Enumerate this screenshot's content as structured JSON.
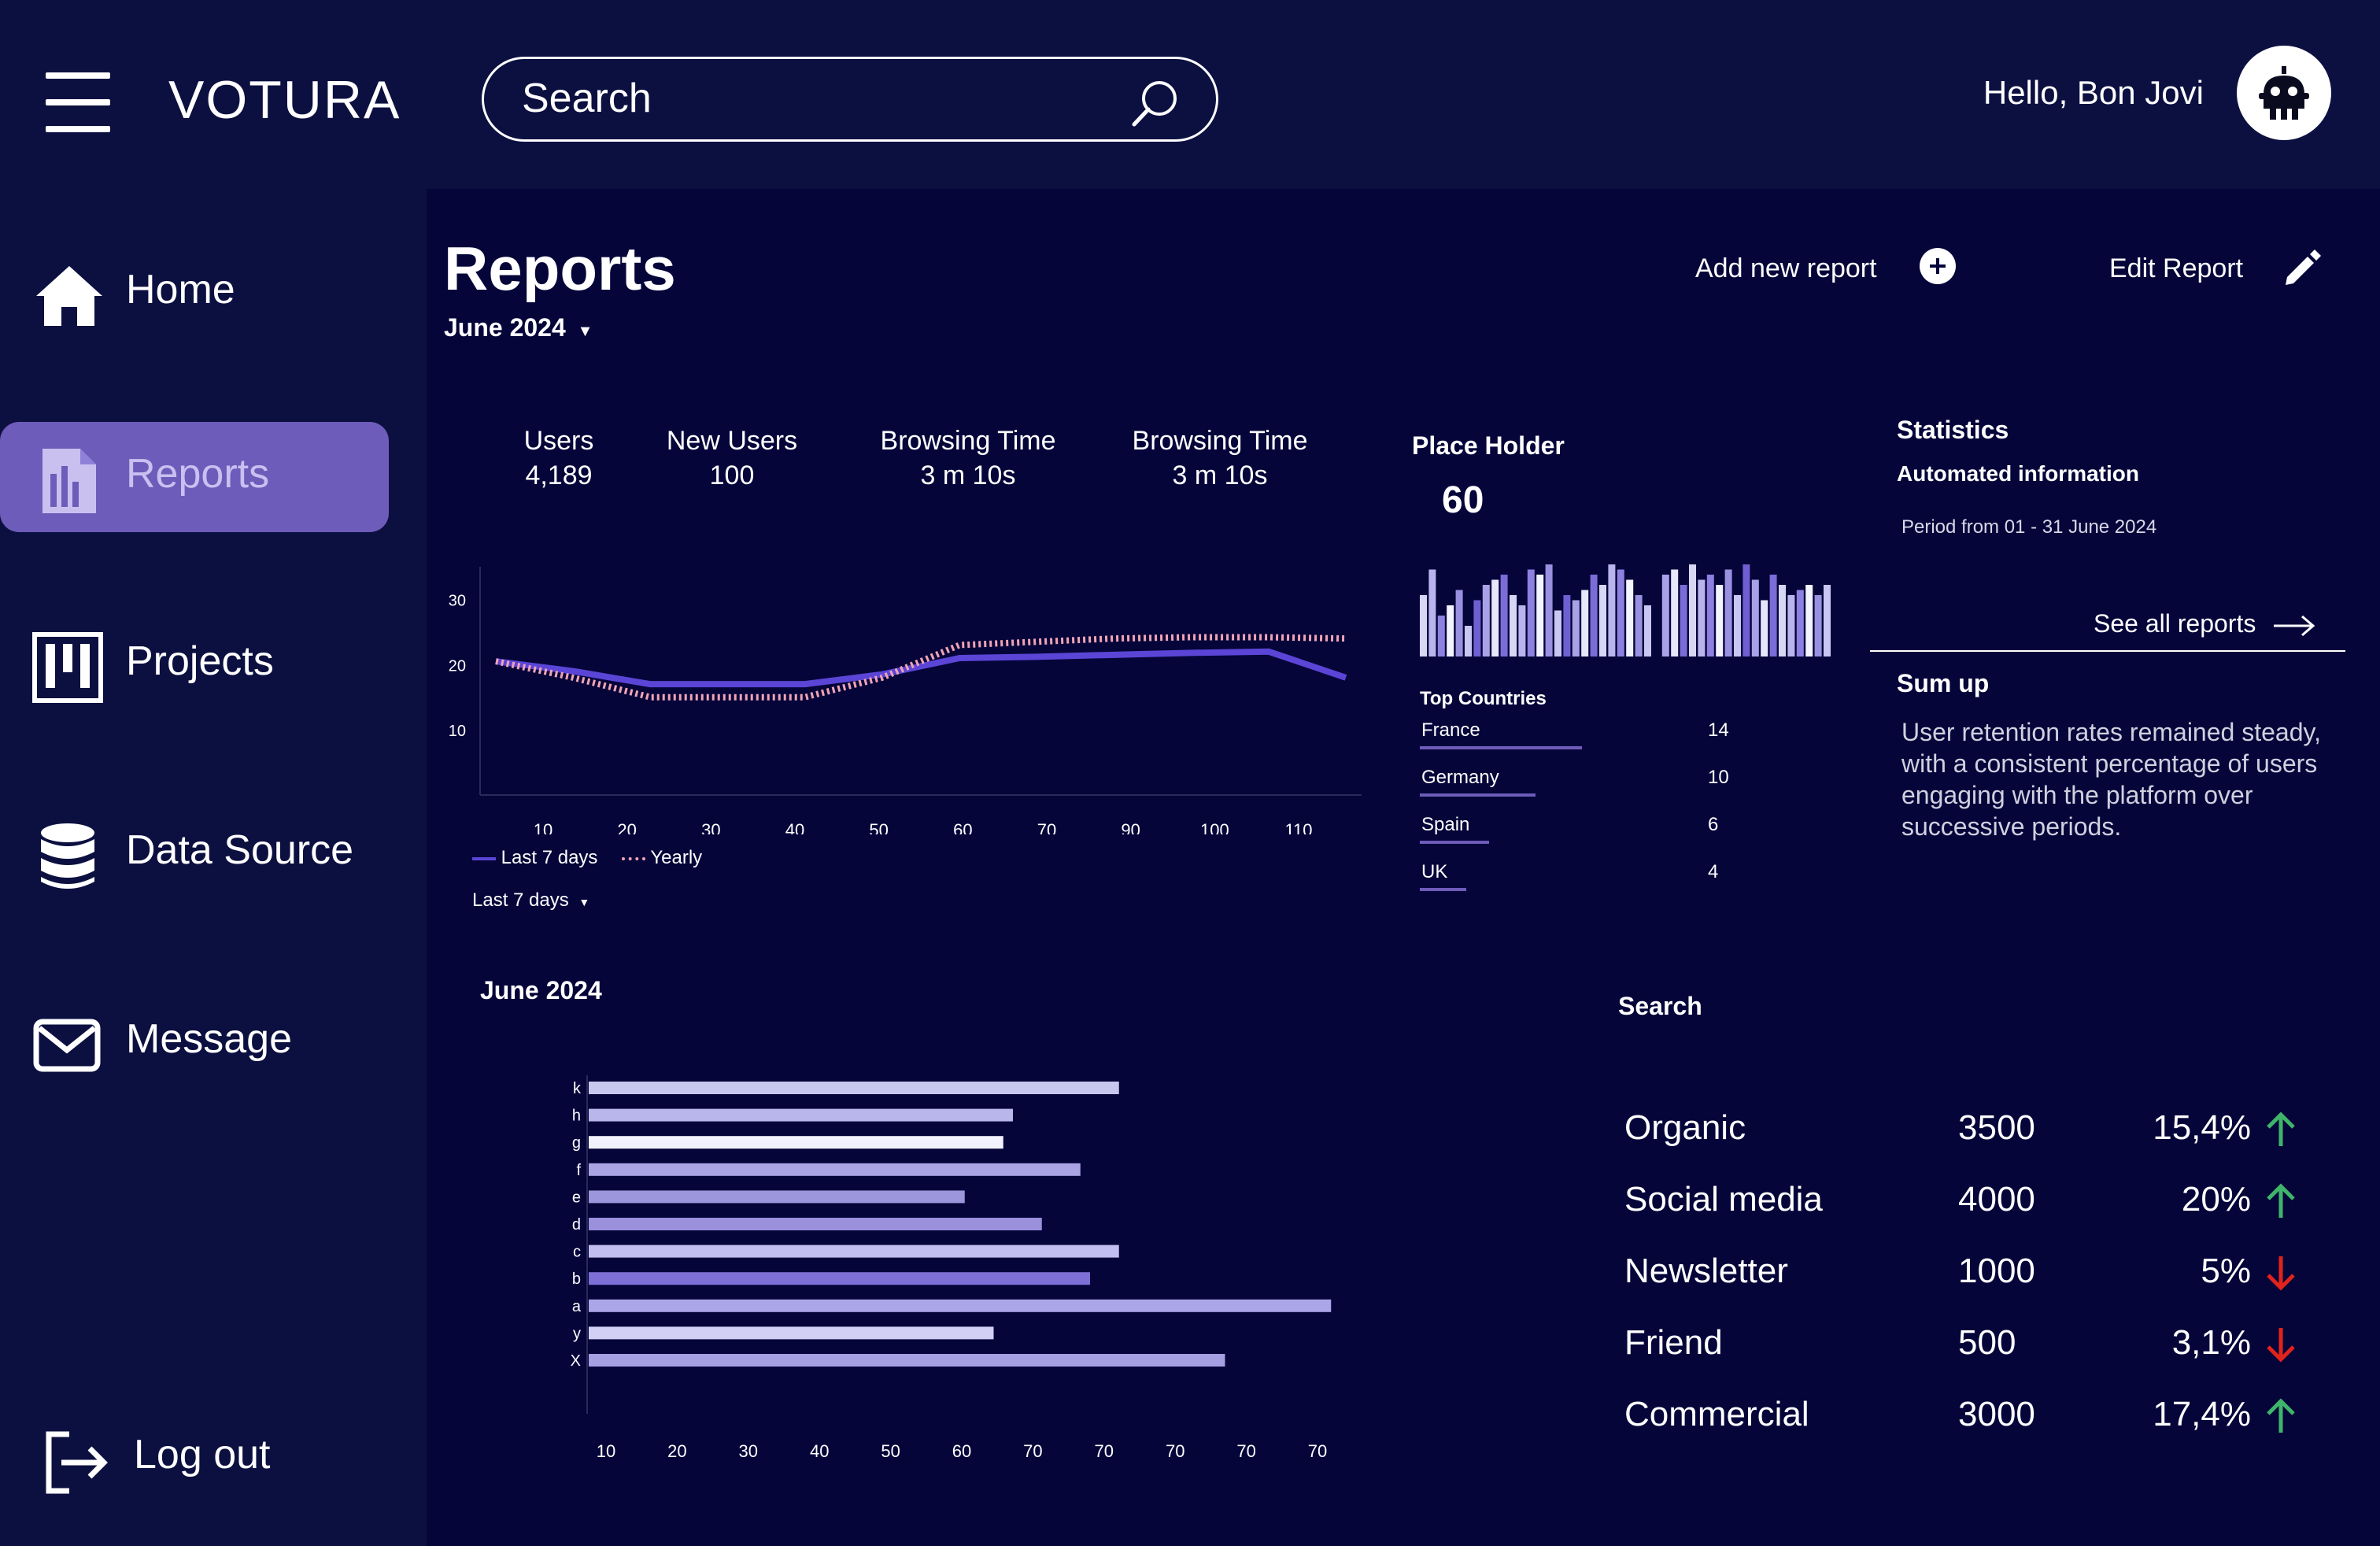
{
  "app": {
    "brand": "VOTURA",
    "greeting": "Hello, Bon Jovi"
  },
  "search": {
    "placeholder": "Search"
  },
  "sidebar": {
    "items": [
      {
        "label": "Home",
        "icon": "home-icon"
      },
      {
        "label": "Reports",
        "icon": "reports-icon",
        "active": true
      },
      {
        "label": "Projects",
        "icon": "projects-icon"
      },
      {
        "label": "Data Source",
        "icon": "database-icon"
      },
      {
        "label": "Message",
        "icon": "mail-icon"
      }
    ],
    "logout": "Log out"
  },
  "page": {
    "title": "Reports",
    "period": "June 2024",
    "add_report": "Add new report",
    "edit_report": "Edit Report"
  },
  "kpis": [
    {
      "label": "Users",
      "value": "4,189"
    },
    {
      "label": "New Users",
      "value": "100"
    },
    {
      "label": "Browsing Time",
      "value": "3 m 10s"
    },
    {
      "label": "Browsing Time",
      "value": "3 m 10s"
    }
  ],
  "chart_data": [
    {
      "type": "line",
      "x_ticks": [
        "10",
        "20",
        "30",
        "40",
        "50",
        "60",
        "70",
        "90",
        "100",
        "110"
      ],
      "y_ticks": [
        "10",
        "20",
        "30"
      ],
      "ylim": [
        0,
        35
      ],
      "series": [
        {
          "name": "Last 7 days",
          "color": "#5b45d6",
          "style": "solid",
          "values": [
            20.5,
            19,
            17,
            17,
            17,
            18.5,
            21,
            21.2,
            21.5,
            21.8,
            22,
            18
          ]
        },
        {
          "name": "Yearly",
          "color": "#f0a4b4",
          "style": "dotted",
          "values": [
            20.5,
            18,
            15,
            15,
            15,
            18,
            23,
            23.5,
            24,
            24.2,
            24.2,
            24
          ]
        }
      ],
      "legend_position": "bottom-left",
      "range_selector": "Last 7 days"
    },
    {
      "type": "bar",
      "orientation": "horizontal",
      "title": "June 2024",
      "categories": [
        "k",
        "h",
        "g",
        "f",
        "e",
        "d",
        "c",
        "b",
        "a",
        "y",
        "X"
      ],
      "values": [
        55,
        44,
        43,
        51,
        39,
        47,
        55,
        52,
        77,
        42,
        66
      ],
      "x_ticks": [
        "10",
        "20",
        "30",
        "40",
        "50",
        "60",
        "70",
        "70",
        "70",
        "70",
        "70"
      ],
      "colors": [
        "#c8c8ee",
        "#b8b6ea",
        "#f2f2ff",
        "#aaa4e4",
        "#9c96dc",
        "#9a90dc",
        "#c2bff0",
        "#7d6fd6",
        "#aaa6e8",
        "#d2d0f5",
        "#a4a0e2"
      ]
    },
    {
      "type": "bar",
      "title": "Place Holder",
      "headline_value": "60",
      "values": [
        60,
        85,
        40,
        50,
        65,
        30,
        55,
        70,
        75,
        80,
        60,
        50,
        85,
        80,
        90,
        45,
        60,
        55,
        65,
        80,
        70,
        90,
        85,
        75,
        60,
        50,
        0,
        80,
        85,
        70,
        90,
        75,
        80,
        70,
        85,
        60,
        90,
        75,
        55,
        80,
        70,
        60,
        65,
        70,
        60,
        70
      ],
      "colors": [
        "#d8d6f5",
        "#b9b3ee",
        "#8d80e0",
        "#f4f4ff",
        "#9a90e0",
        "#c9c6f3",
        "#6f5fd2",
        "#a9a2e8",
        "#e7e6fa",
        "#7b6cd8"
      ]
    }
  ],
  "place_holder": {
    "title": "Place Holder",
    "value": "60",
    "top_countries_label": "Top Countries",
    "countries": [
      {
        "name": "France",
        "value": "14"
      },
      {
        "name": "Germany",
        "value": "10"
      },
      {
        "name": "Spain",
        "value": "6"
      },
      {
        "name": "UK",
        "value": "4"
      }
    ]
  },
  "statistics": {
    "title": "Statistics",
    "subtitle": "Automated information",
    "period": "Period from 01 - 31 June 2024",
    "see_all": "See all reports",
    "sumup_title": "Sum up",
    "sumup_text": "User retention rates remained steady, with a consistent percentage of users engaging with the platform over successive periods."
  },
  "search_table": {
    "title": "Search",
    "rows": [
      {
        "source": "Organic",
        "count": "3500",
        "pct": "15,4%",
        "trend": "up"
      },
      {
        "source": "Social media",
        "count": "4000",
        "pct": "20%",
        "trend": "up"
      },
      {
        "source": "Newsletter",
        "count": "1000",
        "pct": "5%",
        "trend": "down"
      },
      {
        "source": "Friend",
        "count": "500",
        "pct": "3,1%",
        "trend": "down"
      },
      {
        "source": "Commercial",
        "count": "3000",
        "pct": "17,4%",
        "trend": "up"
      }
    ]
  },
  "colors": {
    "up": "#3fb56a",
    "down": "#e0231b",
    "accent": "#6e5cba",
    "bg": "#05053a",
    "panel": "#0c1040"
  }
}
